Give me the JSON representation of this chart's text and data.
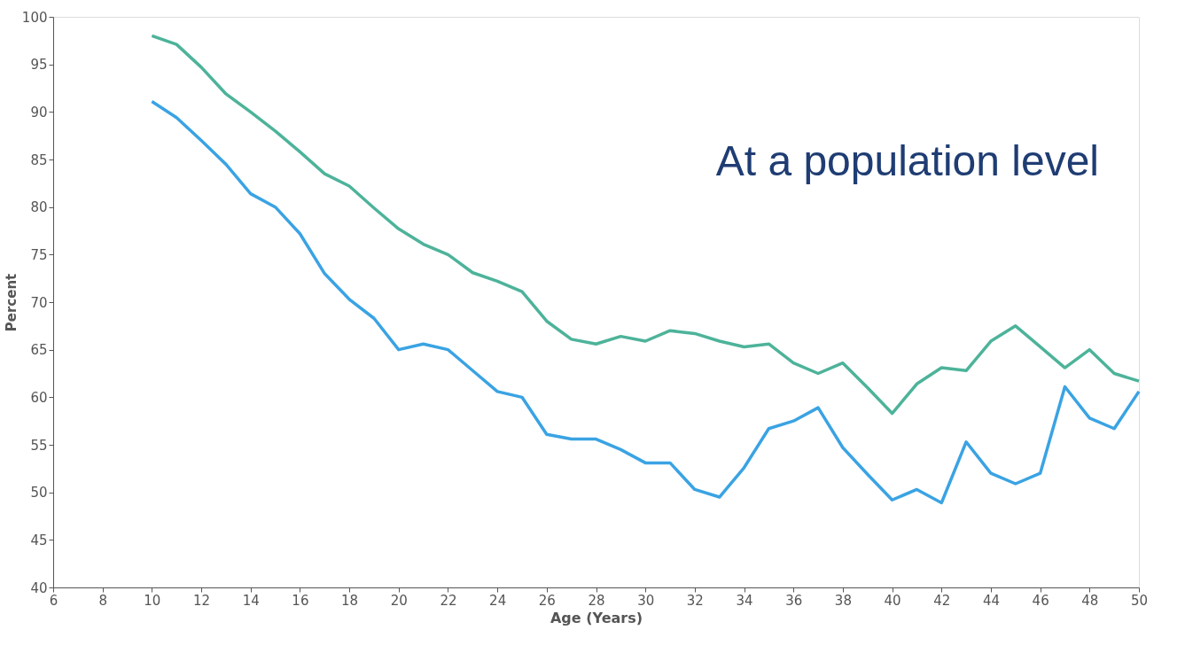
{
  "chart_data": {
    "type": "line",
    "xlabel": "Age (Years)",
    "ylabel": "Percent",
    "annotations": [
      "At a population level"
    ],
    "x": [
      10,
      11,
      12,
      13,
      14,
      15,
      16,
      17,
      18,
      19,
      20,
      21,
      22,
      23,
      24,
      25,
      26,
      27,
      28,
      29,
      30,
      31,
      32,
      33,
      34,
      35,
      36,
      37,
      38,
      39,
      40,
      41,
      42,
      43,
      44,
      45,
      46,
      47,
      48,
      49,
      50
    ],
    "xlim": [
      6,
      50
    ],
    "xticks": [
      6,
      8,
      10,
      12,
      14,
      16,
      18,
      20,
      22,
      24,
      26,
      28,
      30,
      32,
      34,
      36,
      38,
      40,
      42,
      44,
      46,
      48,
      50
    ],
    "ylim": [
      40,
      100
    ],
    "yticks": [
      40,
      45,
      50,
      55,
      60,
      65,
      70,
      75,
      80,
      85,
      90,
      95,
      100
    ],
    "grid": false,
    "legend": false,
    "marker": "none",
    "line_style": "solid",
    "series": [
      {
        "color": "#4db39a",
        "values": [
          98,
          97.1,
          94.7,
          91.9,
          90,
          88,
          85.8,
          83.5,
          82.2,
          79.9,
          77.7,
          76.1,
          75,
          73.1,
          72.2,
          71.1,
          68,
          66.1,
          65.6,
          66.4,
          65.9,
          67,
          66.7,
          65.9,
          65.3,
          65.6,
          63.6,
          62.5,
          63.6,
          61,
          58.3,
          61.4,
          63.1,
          62.8,
          65.9,
          67.5,
          65.3,
          63.1,
          65,
          62.5,
          61.7
        ]
      },
      {
        "color": "#3aa3e3",
        "values": [
          91.1,
          89.4,
          87,
          84.5,
          81.4,
          80,
          77.2,
          73,
          70.3,
          68.3,
          65,
          65.6,
          65,
          62.8,
          60.6,
          60,
          56.1,
          55.6,
          55.6,
          54.5,
          53.1,
          53.1,
          50.3,
          49.5,
          52.6,
          56.7,
          57.5,
          58.9,
          54.7,
          51.9,
          49.2,
          50.3,
          48.9,
          55.3,
          52,
          50.9,
          52,
          61.1,
          57.8,
          56.7,
          60.6
        ]
      }
    ]
  }
}
